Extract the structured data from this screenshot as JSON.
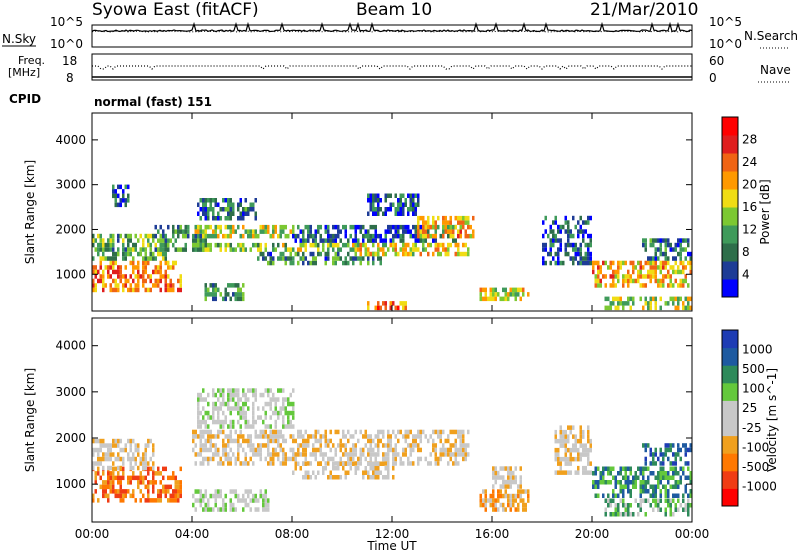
{
  "header": {
    "station": "Syowa East (fitACF)",
    "beam": "Beam 10",
    "date": "21/Mar/2010"
  },
  "top_panel": {
    "left_label": "N.Sky",
    "right_label": "N.Search",
    "left_ticks": [
      "10^5",
      "10^0"
    ],
    "right_ticks": [
      "10^5",
      "10^0"
    ]
  },
  "freq_panel": {
    "left_label_1": "Freq.",
    "left_label_2": "[MHz]",
    "right_label": "Nave",
    "left_ticks": [
      "18",
      "8"
    ],
    "right_ticks": [
      "60",
      "0"
    ]
  },
  "cpid": {
    "label": "CPID",
    "value": "normal (fast) 151"
  },
  "colors": {
    "power": [
      "#0000ff",
      "#1e3c96",
      "#2e6e4a",
      "#3f9a5a",
      "#7cc832",
      "#f0dc14",
      "#ff9900",
      "#f06414",
      "#e01e1e",
      "#ff0000"
    ],
    "velocity": [
      "#ff0000",
      "#f03c14",
      "#ff7800",
      "#f0a01e",
      "#c8c8c8",
      "#c8c8c8",
      "#64c83c",
      "#2e8a5a",
      "#1e5aa0",
      "#1e3cb4"
    ]
  },
  "chart_data": [
    {
      "type": "heatmap",
      "name": "power",
      "ylabel": "Slant Range [km]",
      "xlabel": "Time UT",
      "x_ticks": [
        "00:00",
        "04:00",
        "08:00",
        "12:00",
        "16:00",
        "20:00",
        "00:00"
      ],
      "x_range_hours": [
        0,
        24
      ],
      "y_ticks": [
        "4000",
        "3000",
        "2000",
        "1000"
      ],
      "y_tick_values": [
        4000,
        3000,
        2000,
        1000
      ],
      "y_range_km": [
        180,
        4600
      ],
      "colorbar": {
        "label": "Power [dB]",
        "ticks": [
          "28",
          "24",
          "20",
          "16",
          "12",
          "8",
          "4"
        ],
        "tick_values": [
          28,
          24,
          20,
          16,
          12,
          8,
          4
        ],
        "range": [
          0,
          32
        ]
      },
      "regions": [
        {
          "t0": 0.0,
          "t1": 3.6,
          "r0": 600,
          "r1": 1300,
          "level": 22
        },
        {
          "t0": 0.0,
          "t1": 3.0,
          "r0": 1300,
          "r1": 1900,
          "level": 12
        },
        {
          "t0": 0.8,
          "t1": 1.5,
          "r0": 2500,
          "r1": 3000,
          "level": 6
        },
        {
          "t0": 2.5,
          "t1": 4.5,
          "r0": 1500,
          "r1": 2100,
          "level": 10
        },
        {
          "t0": 4.0,
          "t1": 10.5,
          "r0": 1500,
          "r1": 1700,
          "level": 14
        },
        {
          "t0": 4.0,
          "t1": 8.0,
          "r0": 1800,
          "r1": 2100,
          "level": 16
        },
        {
          "t0": 4.2,
          "t1": 6.5,
          "r0": 2200,
          "r1": 2700,
          "level": 8
        },
        {
          "t0": 6.5,
          "t1": 11.5,
          "r0": 1200,
          "r1": 1500,
          "level": 9
        },
        {
          "t0": 8.0,
          "t1": 14.5,
          "r0": 1700,
          "r1": 2100,
          "level": 6
        },
        {
          "t0": 10.5,
          "t1": 15.0,
          "r0": 1400,
          "r1": 1700,
          "level": 18
        },
        {
          "t0": 13.0,
          "t1": 15.2,
          "r0": 1800,
          "r1": 2300,
          "level": 20
        },
        {
          "t0": 11.0,
          "t1": 13.0,
          "r0": 2300,
          "r1": 2800,
          "level": 6
        },
        {
          "t0": 15.5,
          "t1": 17.5,
          "r0": 400,
          "r1": 700,
          "level": 18
        },
        {
          "t0": 4.5,
          "t1": 6.0,
          "r0": 400,
          "r1": 800,
          "level": 10
        },
        {
          "t0": 11.0,
          "t1": 12.5,
          "r0": 200,
          "r1": 400,
          "level": 24
        },
        {
          "t0": 18.0,
          "t1": 20.0,
          "r0": 1200,
          "r1": 2300,
          "level": 6
        },
        {
          "t0": 20.0,
          "t1": 24.0,
          "r0": 700,
          "r1": 1300,
          "level": 20
        },
        {
          "t0": 20.5,
          "t1": 24.0,
          "r0": 200,
          "r1": 500,
          "level": 16
        },
        {
          "t0": 22.0,
          "t1": 24.0,
          "r0": 1300,
          "r1": 1800,
          "level": 8
        }
      ]
    },
    {
      "type": "heatmap",
      "name": "velocity",
      "ylabel": "Slant Range [km]",
      "xlabel": "Time UT",
      "x_ticks": [
        "00:00",
        "04:00",
        "08:00",
        "12:00",
        "16:00",
        "20:00",
        "00:00"
      ],
      "x_range_hours": [
        0,
        24
      ],
      "y_ticks": [
        "4000",
        "3000",
        "2000",
        "1000"
      ],
      "y_tick_values": [
        4000,
        3000,
        2000,
        1000
      ],
      "y_range_km": [
        180,
        4600
      ],
      "colorbar": {
        "label": "Velocity [m s^-1]",
        "ticks": [
          "1000",
          "500",
          "100",
          "25",
          "-25",
          "-100",
          "-500",
          "-1000"
        ],
        "tick_values": [
          1000,
          500,
          100,
          25,
          -25,
          -100,
          -500,
          -1000
        ]
      },
      "regions": [
        {
          "t0": 0.0,
          "t1": 3.6,
          "r0": 600,
          "r1": 1300,
          "level": 2
        },
        {
          "t0": 0.0,
          "t1": 2.5,
          "r0": 1300,
          "r1": 1900,
          "level": 4
        },
        {
          "t0": 4.0,
          "t1": 15.0,
          "r0": 1400,
          "r1": 2100,
          "level": 4
        },
        {
          "t0": 4.2,
          "t1": 8.0,
          "r0": 2200,
          "r1": 3000,
          "level": 5
        },
        {
          "t0": 8.0,
          "t1": 12.0,
          "r0": 1100,
          "r1": 1400,
          "level": 4
        },
        {
          "t0": 4.0,
          "t1": 7.0,
          "r0": 400,
          "r1": 800,
          "level": 5
        },
        {
          "t0": 15.5,
          "t1": 17.5,
          "r0": 400,
          "r1": 800,
          "level": 3
        },
        {
          "t0": 16.0,
          "t1": 17.2,
          "r0": 900,
          "r1": 1300,
          "level": 4
        },
        {
          "t0": 18.5,
          "t1": 20.0,
          "r0": 1200,
          "r1": 2200,
          "level": 4
        },
        {
          "t0": 20.0,
          "t1": 24.0,
          "r0": 700,
          "r1": 1300,
          "level": 7
        },
        {
          "t0": 20.5,
          "t1": 24.0,
          "r0": 300,
          "r1": 600,
          "level": 6
        },
        {
          "t0": 22.0,
          "t1": 24.0,
          "r0": 1400,
          "r1": 1800,
          "level": 8
        }
      ]
    }
  ]
}
